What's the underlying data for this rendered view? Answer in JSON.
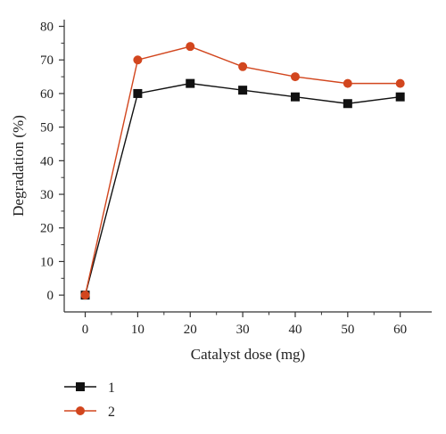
{
  "chart_data": {
    "type": "line",
    "title": "",
    "xlabel": "Catalyst dose (mg)",
    "ylabel": "Degradation (%)",
    "x": [
      0,
      10,
      20,
      30,
      40,
      50,
      60
    ],
    "xlim": [
      -4,
      66
    ],
    "ylim": [
      -5,
      82
    ],
    "xticks": [
      "0",
      "10",
      "20",
      "30",
      "40",
      "50",
      "60"
    ],
    "yticks": [
      "0",
      "10",
      "20",
      "30",
      "40",
      "50",
      "60",
      "70",
      "80"
    ],
    "grid": false,
    "legend_position": "bottom-left",
    "series": [
      {
        "name": "1",
        "color": "#111111",
        "marker": "square",
        "values": [
          0,
          60,
          63,
          61,
          59,
          57,
          59
        ]
      },
      {
        "name": "2",
        "color": "#d2461e",
        "marker": "circle",
        "values": [
          0,
          70,
          74,
          68,
          65,
          63,
          63
        ]
      }
    ]
  }
}
